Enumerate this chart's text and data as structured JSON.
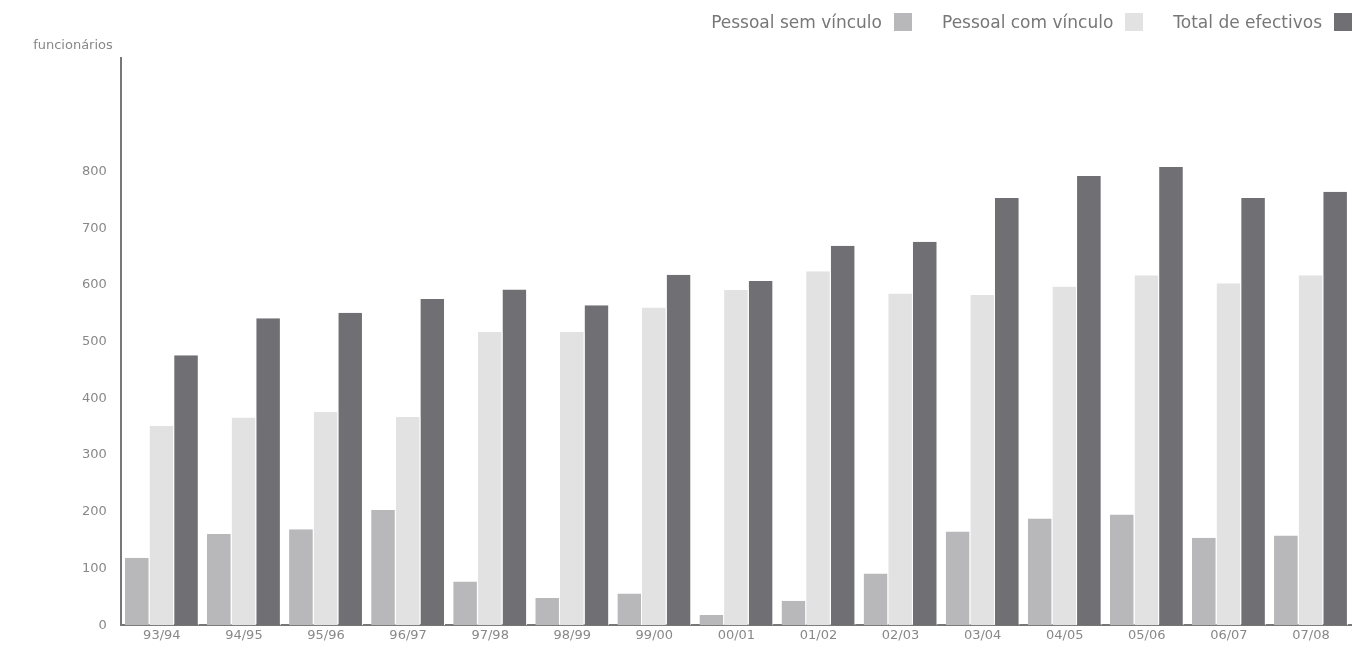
{
  "chart_data": {
    "type": "bar",
    "ylabel": "funcionários",
    "categories": [
      "93/94",
      "94/95",
      "95/96",
      "96/97",
      "97/98",
      "98/99",
      "99/00",
      "00/01",
      "01/02",
      "02/03",
      "03/04",
      "04/05",
      "05/06",
      "06/07",
      "07/08"
    ],
    "series": [
      {
        "name": "Pessoal sem vínculo",
        "color": "#b8b8ba",
        "values": [
          119,
          161,
          169,
          203,
          77,
          48,
          56,
          18,
          43,
          91,
          165,
          188,
          195,
          154,
          158
        ]
      },
      {
        "name": "Pessoal com vínculo",
        "color": "#e2e2e2",
        "values": [
          351,
          366,
          376,
          367,
          517,
          517,
          560,
          591,
          624,
          585,
          582,
          597,
          617,
          603,
          617
        ]
      },
      {
        "name": "Total de efectivos",
        "color": "#706f74",
        "values": [
          476,
          541,
          551,
          575,
          592,
          564,
          618,
          607,
          669,
          676,
          753,
          792,
          808,
          753,
          764
        ]
      }
    ],
    "ylim": [
      0,
      1000
    ],
    "yticks": [
      0,
      100,
      200,
      300,
      400,
      500,
      600,
      700,
      800
    ],
    "grid": false,
    "legend": "top right"
  }
}
